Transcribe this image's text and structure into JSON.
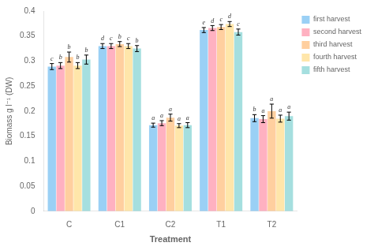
{
  "chart_data": {
    "type": "bar",
    "categories": [
      "C",
      "C1",
      "C2",
      "T1",
      "T2"
    ],
    "series": [
      {
        "name": "first harvest",
        "values": [
          0.289,
          0.33,
          0.172,
          0.362,
          0.186
        ],
        "errors": [
          0.006,
          0.005,
          0.004,
          0.005,
          0.007
        ],
        "sig_labels": [
          "c",
          "d",
          "a",
          "e",
          "b"
        ]
      },
      {
        "name": "second harvest",
        "values": [
          0.291,
          0.33,
          0.176,
          0.366,
          0.184
        ],
        "errors": [
          0.006,
          0.005,
          0.005,
          0.005,
          0.007
        ],
        "sig_labels": [
          "b",
          "c",
          "a",
          "d",
          "a"
        ]
      },
      {
        "name": "third harvest",
        "values": [
          0.308,
          0.334,
          0.187,
          0.368,
          0.2
        ],
        "errors": [
          0.01,
          0.005,
          0.007,
          0.005,
          0.014
        ],
        "sig_labels": [
          "b",
          "b",
          "a",
          "c",
          "a"
        ]
      },
      {
        "name": "fourth harvest",
        "values": [
          0.291,
          0.33,
          0.171,
          0.374,
          0.185
        ],
        "errors": [
          0.006,
          0.005,
          0.004,
          0.005,
          0.007
        ],
        "sig_labels": [
          "b",
          "c",
          "a",
          "d",
          "a"
        ]
      },
      {
        "name": "fifth harvest",
        "values": [
          0.303,
          0.325,
          0.172,
          0.358,
          0.19
        ],
        "errors": [
          0.009,
          0.006,
          0.005,
          0.006,
          0.008
        ],
        "sig_labels": [
          "b",
          "b",
          "a",
          "c",
          "a"
        ]
      }
    ],
    "ylabel": "Biomass g l⁻¹ (DW)",
    "xlabel": "Treatment",
    "ylim": [
      0,
      0.4
    ],
    "yticks": [
      0,
      0.05,
      0.1,
      0.15,
      0.2,
      0.25,
      0.3,
      0.35,
      0.4
    ],
    "grid": false,
    "legend": "upper right"
  }
}
